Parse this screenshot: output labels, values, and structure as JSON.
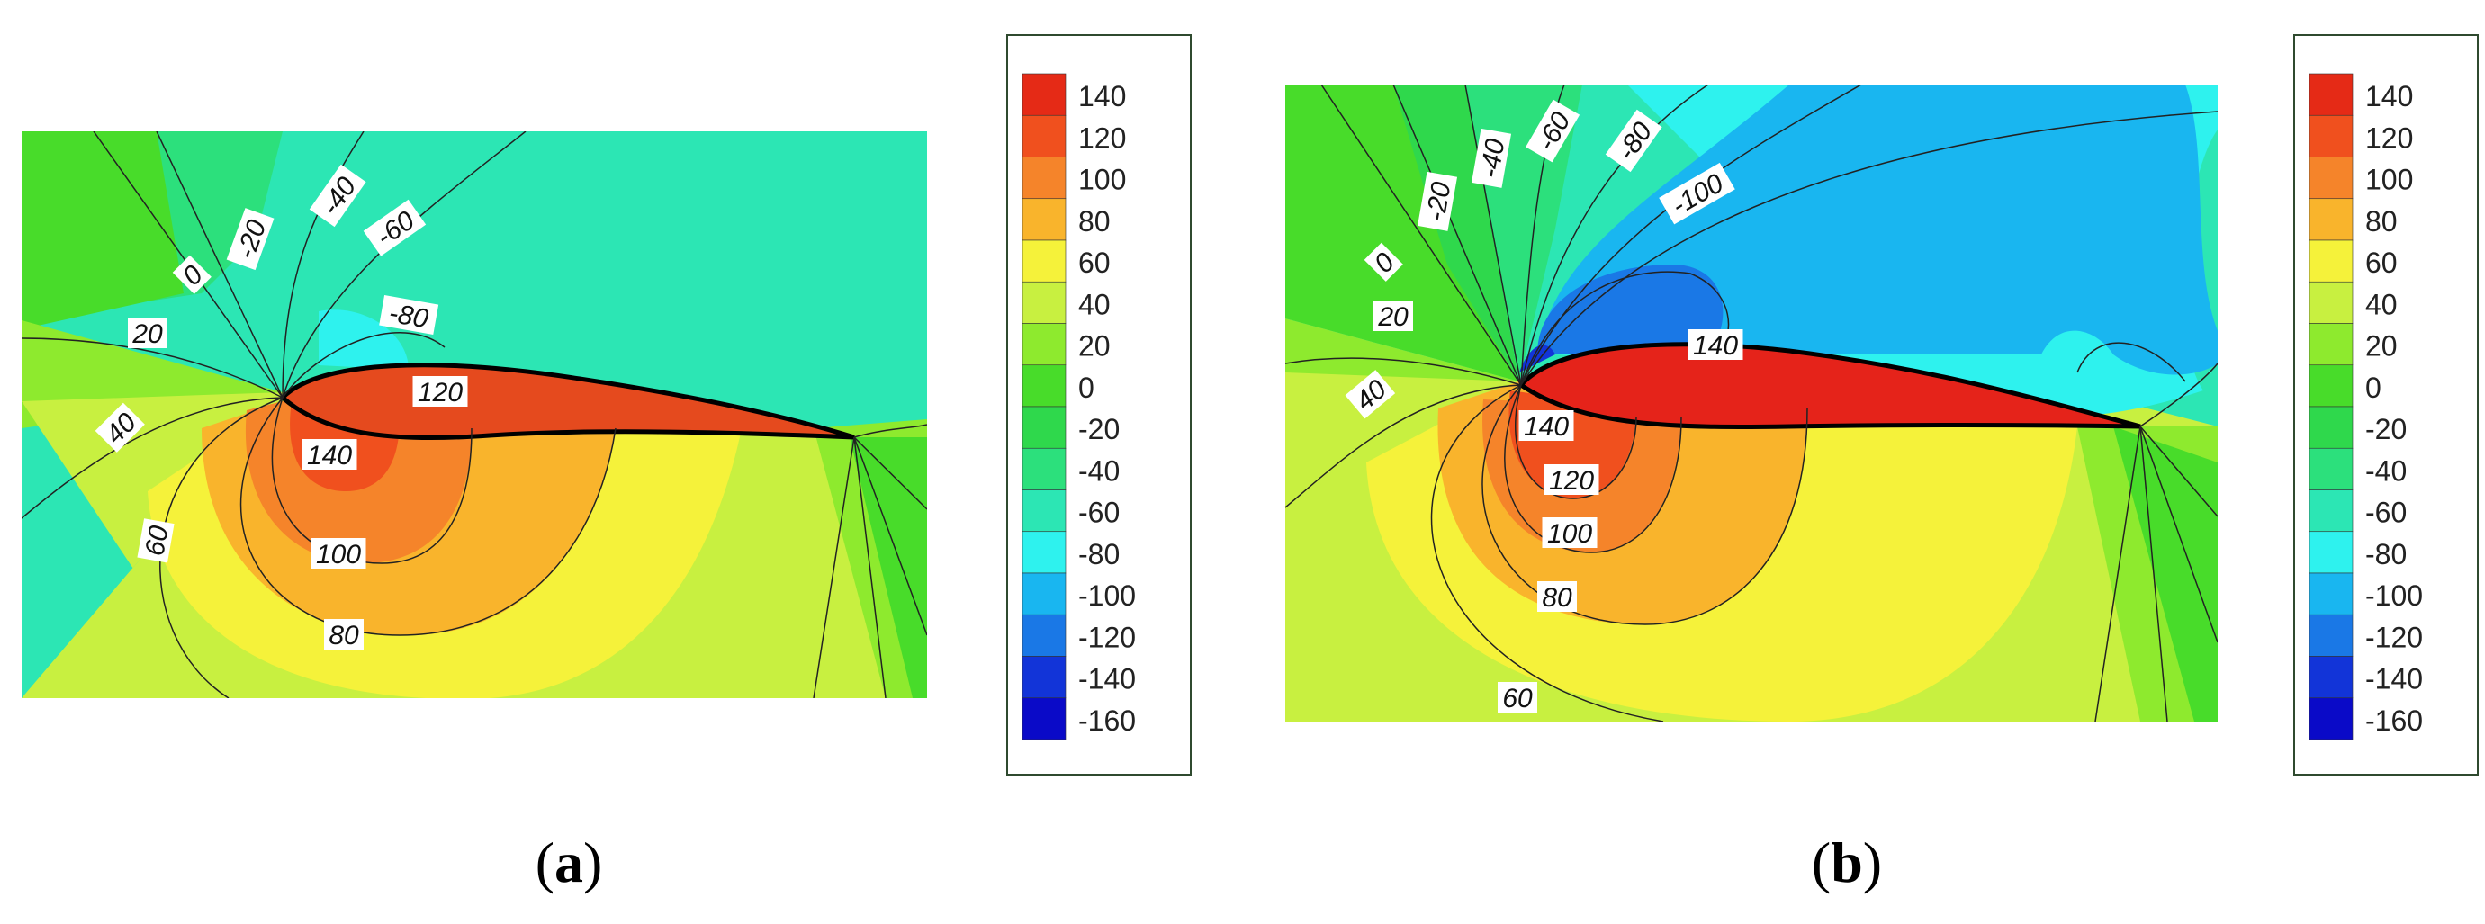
{
  "chart_data": [
    {
      "type": "heatmap",
      "panel_label": "a",
      "colorbar": {
        "levels": [
          140,
          120,
          100,
          80,
          60,
          40,
          20,
          0,
          -20,
          -40,
          -60,
          -80,
          -100,
          -120,
          -140,
          -160
        ],
        "colors": [
          "#e52a16",
          "#f0501e",
          "#f5842a",
          "#f9b42c",
          "#f5f23a",
          "#c8f040",
          "#8eea2e",
          "#48dc2a",
          "#2fd84c",
          "#2ce07c",
          "#2ce6b4",
          "#2ef2ee",
          "#19b6f0",
          "#1a78e6",
          "#1234d8",
          "#0a0ac8"
        ]
      },
      "contour_labels": [
        "0",
        "-20",
        "-40",
        "-60",
        "-80",
        "20",
        "40",
        "60",
        "120",
        "140",
        "100",
        "80"
      ]
    },
    {
      "type": "heatmap",
      "panel_label": "b",
      "colorbar": {
        "levels": [
          140,
          120,
          100,
          80,
          60,
          40,
          20,
          0,
          -20,
          -40,
          -60,
          -80,
          -100,
          -120,
          -140,
          -160
        ],
        "colors": [
          "#e52a16",
          "#f0501e",
          "#f5842a",
          "#f9b42c",
          "#f5f23a",
          "#c8f040",
          "#8eea2e",
          "#48dc2a",
          "#2fd84c",
          "#2ce07c",
          "#2ce6b4",
          "#2ef2ee",
          "#19b6f0",
          "#1a78e6",
          "#1234d8",
          "#0a0ac8"
        ]
      },
      "contour_labels": [
        "-60",
        "-80",
        "-100",
        "-40",
        "-20",
        "0",
        "20",
        "40",
        "140",
        "140",
        "120",
        "100",
        "80",
        "60"
      ]
    }
  ]
}
